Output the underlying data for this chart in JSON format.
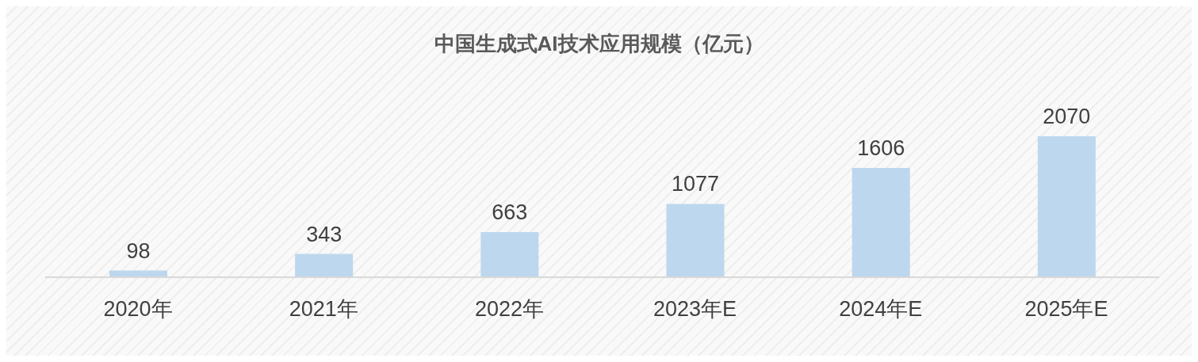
{
  "chart_data": {
    "type": "bar",
    "title": "中国生成式AI技术应用规模（亿元）",
    "categories": [
      "2020年",
      "2021年",
      "2022年",
      "2023年E",
      "2024年E",
      "2025年E"
    ],
    "values": [
      98,
      343,
      663,
      1077,
      1606,
      2070
    ],
    "color": "#bdd7ee",
    "data_labels": true
  }
}
